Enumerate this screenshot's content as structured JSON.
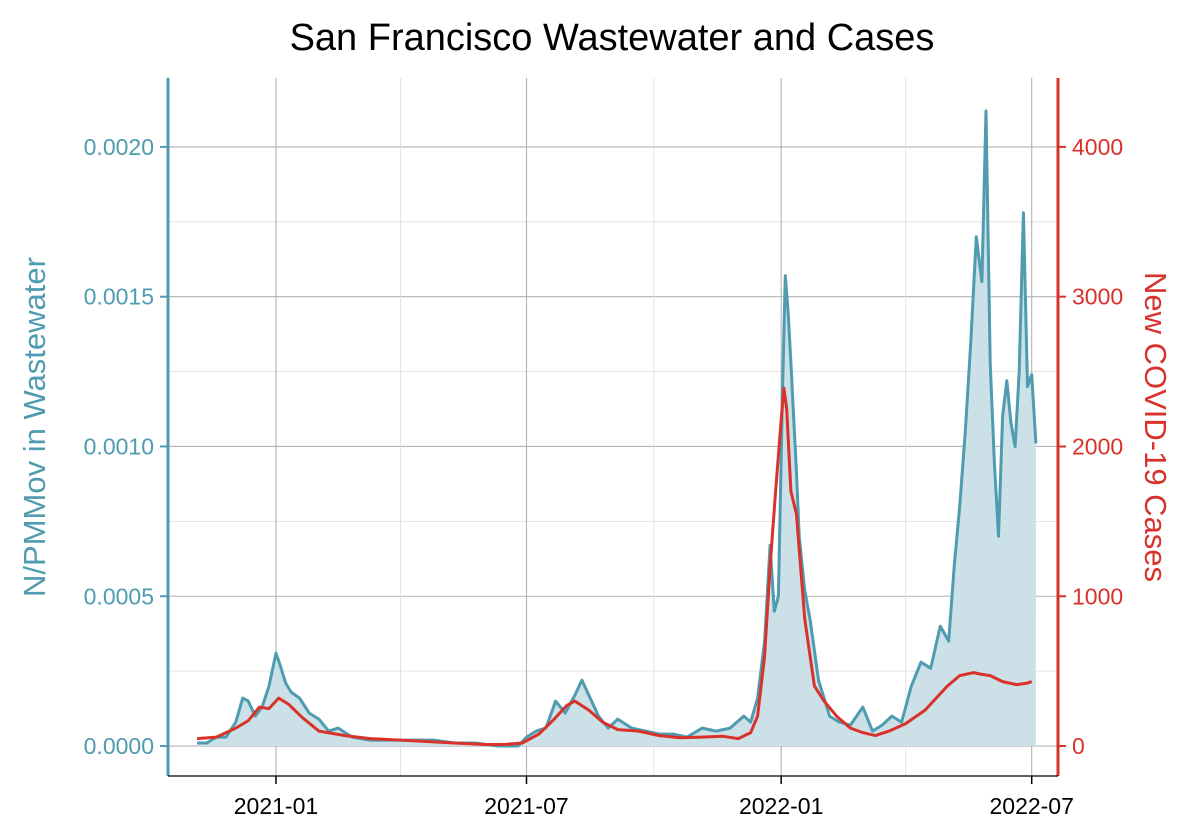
{
  "colors": {
    "wastewater": "#4f9bb0",
    "wastewater_fill": "#cce1e7",
    "cases": "#d8322b",
    "grid": "#b3b3b3",
    "text": "#000000"
  },
  "chart_data": {
    "type": "line",
    "title": "San Francisco Wastewater and Cases",
    "xlabel": "",
    "x_ticks": [
      "2021-01",
      "2021-07",
      "2022-01",
      "2022-07"
    ],
    "x_range": [
      "2020-10-15",
      "2022-07-20"
    ],
    "grid": true,
    "y_left": {
      "label": "N/PMMov in Wastewater",
      "ticks": [
        "0.0000",
        "0.0005",
        "0.0010",
        "0.0015",
        "0.0020"
      ],
      "range": [
        -0.0001,
        0.00223
      ]
    },
    "y_right": {
      "label": "New COVID-19 Cases",
      "ticks": [
        "0",
        "1000",
        "2000",
        "3000",
        "4000"
      ],
      "range": [
        -200,
        4460
      ]
    },
    "series": [
      {
        "name": "N/PMMov in Wastewater",
        "axis": "left",
        "style": "line-with-area",
        "x": [
          "2020-11-05",
          "2020-11-12",
          "2020-11-19",
          "2020-11-26",
          "2020-12-03",
          "2020-12-08",
          "2020-12-12",
          "2020-12-17",
          "2020-12-22",
          "2020-12-27",
          "2021-01-01",
          "2021-01-04",
          "2021-01-08",
          "2021-01-12",
          "2021-01-18",
          "2021-01-25",
          "2021-02-01",
          "2021-02-08",
          "2021-02-15",
          "2021-02-25",
          "2021-03-10",
          "2021-03-25",
          "2021-04-10",
          "2021-04-25",
          "2021-05-10",
          "2021-05-25",
          "2021-06-10",
          "2021-06-25",
          "2021-07-01",
          "2021-07-08",
          "2021-07-15",
          "2021-07-22",
          "2021-07-29",
          "2021-08-05",
          "2021-08-10",
          "2021-08-15",
          "2021-08-22",
          "2021-08-29",
          "2021-09-05",
          "2021-09-15",
          "2021-09-25",
          "2021-10-05",
          "2021-10-15",
          "2021-10-25",
          "2021-11-05",
          "2021-11-15",
          "2021-11-25",
          "2021-12-05",
          "2021-12-10",
          "2021-12-15",
          "2021-12-20",
          "2021-12-24",
          "2021-12-27",
          "2021-12-30",
          "2022-01-02",
          "2022-01-04",
          "2022-01-06",
          "2022-01-08",
          "2022-01-10",
          "2022-01-12",
          "2022-01-14",
          "2022-01-18",
          "2022-01-22",
          "2022-01-28",
          "2022-02-05",
          "2022-02-12",
          "2022-02-20",
          "2022-03-01",
          "2022-03-08",
          "2022-03-15",
          "2022-03-22",
          "2022-03-29",
          "2022-04-05",
          "2022-04-12",
          "2022-04-19",
          "2022-04-26",
          "2022-05-02",
          "2022-05-06",
          "2022-05-10",
          "2022-05-14",
          "2022-05-18",
          "2022-05-22",
          "2022-05-26",
          "2022-05-29",
          "2022-06-01",
          "2022-06-04",
          "2022-06-07",
          "2022-06-10",
          "2022-06-13",
          "2022-06-16",
          "2022-06-19",
          "2022-06-22",
          "2022-06-25",
          "2022-06-28",
          "2022-07-01",
          "2022-07-04"
        ],
        "y": [
          1e-05,
          1e-05,
          3e-05,
          3e-05,
          8e-05,
          0.00016,
          0.00015,
          0.0001,
          0.00013,
          0.0002,
          0.00031,
          0.00027,
          0.00021,
          0.00018,
          0.00016,
          0.00011,
          9e-05,
          5e-05,
          6e-05,
          3e-05,
          2e-05,
          2e-05,
          2e-05,
          2e-05,
          1e-05,
          1e-05,
          0.0,
          0.0,
          3e-05,
          5e-05,
          6e-05,
          0.00015,
          0.00011,
          0.00017,
          0.00022,
          0.00017,
          0.0001,
          6e-05,
          9e-05,
          6e-05,
          5e-05,
          4e-05,
          4e-05,
          3e-05,
          6e-05,
          5e-05,
          6e-05,
          0.0001,
          8e-05,
          0.00016,
          0.00035,
          0.00067,
          0.00045,
          0.0005,
          0.0012,
          0.00157,
          0.00145,
          0.00128,
          0.0011,
          0.00092,
          0.0007,
          0.00052,
          0.00042,
          0.00022,
          0.0001,
          8e-05,
          7e-05,
          0.00013,
          5e-05,
          7e-05,
          0.0001,
          8e-05,
          0.0002,
          0.00028,
          0.00026,
          0.0004,
          0.00035,
          0.0006,
          0.0008,
          0.00105,
          0.00135,
          0.0017,
          0.00155,
          0.00212,
          0.00128,
          0.00095,
          0.0007,
          0.0011,
          0.00122,
          0.00108,
          0.001,
          0.00125,
          0.00178,
          0.0012,
          0.00124,
          0.00101
        ]
      },
      {
        "name": "New COVID-19 Cases",
        "axis": "right",
        "style": "line",
        "x": [
          "2020-11-05",
          "2020-11-19",
          "2020-12-03",
          "2020-12-12",
          "2020-12-20",
          "2020-12-27",
          "2021-01-03",
          "2021-01-10",
          "2021-01-20",
          "2021-02-01",
          "2021-02-20",
          "2021-03-10",
          "2021-04-01",
          "2021-04-20",
          "2021-05-10",
          "2021-06-01",
          "2021-06-15",
          "2021-06-28",
          "2021-07-10",
          "2021-07-20",
          "2021-07-30",
          "2021-08-05",
          "2021-08-15",
          "2021-08-25",
          "2021-09-05",
          "2021-09-20",
          "2021-10-05",
          "2021-10-20",
          "2021-11-05",
          "2021-11-20",
          "2021-12-01",
          "2021-12-10",
          "2021-12-15",
          "2021-12-20",
          "2021-12-24",
          "2021-12-28",
          "2022-01-01",
          "2022-01-03",
          "2022-01-05",
          "2022-01-08",
          "2022-01-12",
          "2022-01-18",
          "2022-01-25",
          "2022-02-01",
          "2022-02-10",
          "2022-02-20",
          "2022-03-01",
          "2022-03-10",
          "2022-03-20",
          "2022-04-01",
          "2022-04-15",
          "2022-05-01",
          "2022-05-10",
          "2022-05-20",
          "2022-05-25",
          "2022-06-01",
          "2022-06-10",
          "2022-06-20",
          "2022-06-28",
          "2022-07-01"
        ],
        "y": [
          50,
          60,
          120,
          170,
          260,
          250,
          320,
          280,
          190,
          100,
          70,
          50,
          40,
          30,
          20,
          10,
          10,
          20,
          80,
          170,
          270,
          300,
          240,
          160,
          110,
          100,
          70,
          55,
          60,
          65,
          50,
          90,
          200,
          600,
          1200,
          1700,
          2180,
          2390,
          2250,
          1700,
          1550,
          850,
          400,
          300,
          200,
          120,
          90,
          70,
          100,
          150,
          240,
          400,
          470,
          490,
          480,
          470,
          430,
          410,
          420,
          430
        ]
      }
    ]
  }
}
